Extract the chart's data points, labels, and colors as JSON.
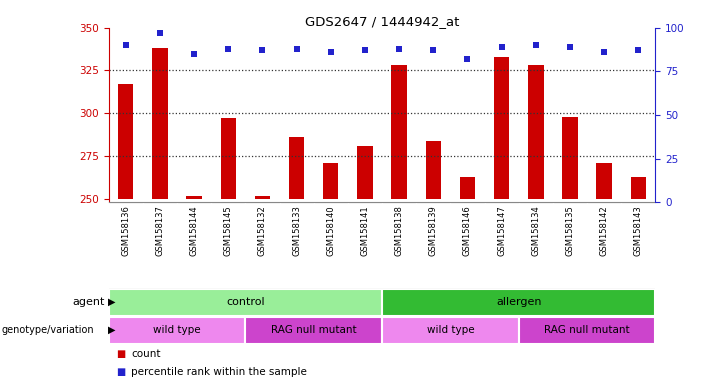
{
  "title": "GDS2647 / 1444942_at",
  "samples": [
    "GSM158136",
    "GSM158137",
    "GSM158144",
    "GSM158145",
    "GSM158132",
    "GSM158133",
    "GSM158140",
    "GSM158141",
    "GSM158138",
    "GSM158139",
    "GSM158146",
    "GSM158147",
    "GSM158134",
    "GSM158135",
    "GSM158142",
    "GSM158143"
  ],
  "counts": [
    317,
    338,
    252,
    297,
    252,
    286,
    271,
    281,
    328,
    284,
    263,
    333,
    328,
    298,
    271,
    263
  ],
  "percentile_ranks": [
    90,
    97,
    85,
    88,
    87,
    88,
    86,
    87,
    88,
    87,
    82,
    89,
    90,
    89,
    86,
    87
  ],
  "ylim_left": [
    248,
    350
  ],
  "ylim_right": [
    0,
    100
  ],
  "yticks_left": [
    250,
    275,
    300,
    325,
    350
  ],
  "yticks_right": [
    0,
    25,
    50,
    75,
    100
  ],
  "bar_color": "#cc0000",
  "dot_color": "#2222cc",
  "bar_width": 0.45,
  "agent_groups": [
    {
      "label": "control",
      "start": 0,
      "end": 8,
      "color": "#99ee99"
    },
    {
      "label": "allergen",
      "start": 8,
      "end": 16,
      "color": "#33bb33"
    }
  ],
  "genotype_groups": [
    {
      "label": "wild type",
      "start": 0,
      "end": 4,
      "color": "#ee88ee"
    },
    {
      "label": "RAG null mutant",
      "start": 4,
      "end": 8,
      "color": "#cc44cc"
    },
    {
      "label": "wild type",
      "start": 8,
      "end": 12,
      "color": "#ee88ee"
    },
    {
      "label": "RAG null mutant",
      "start": 12,
      "end": 16,
      "color": "#cc44cc"
    }
  ],
  "legend_items": [
    {
      "label": "count",
      "color": "#cc0000"
    },
    {
      "label": "percentile rank within the sample",
      "color": "#2222cc"
    }
  ],
  "background_color": "#ffffff",
  "tick_label_color_left": "#cc0000",
  "tick_label_color_right": "#2222cc",
  "xlabel_bg": "#cccccc",
  "grid_dotted_color": "#333333"
}
